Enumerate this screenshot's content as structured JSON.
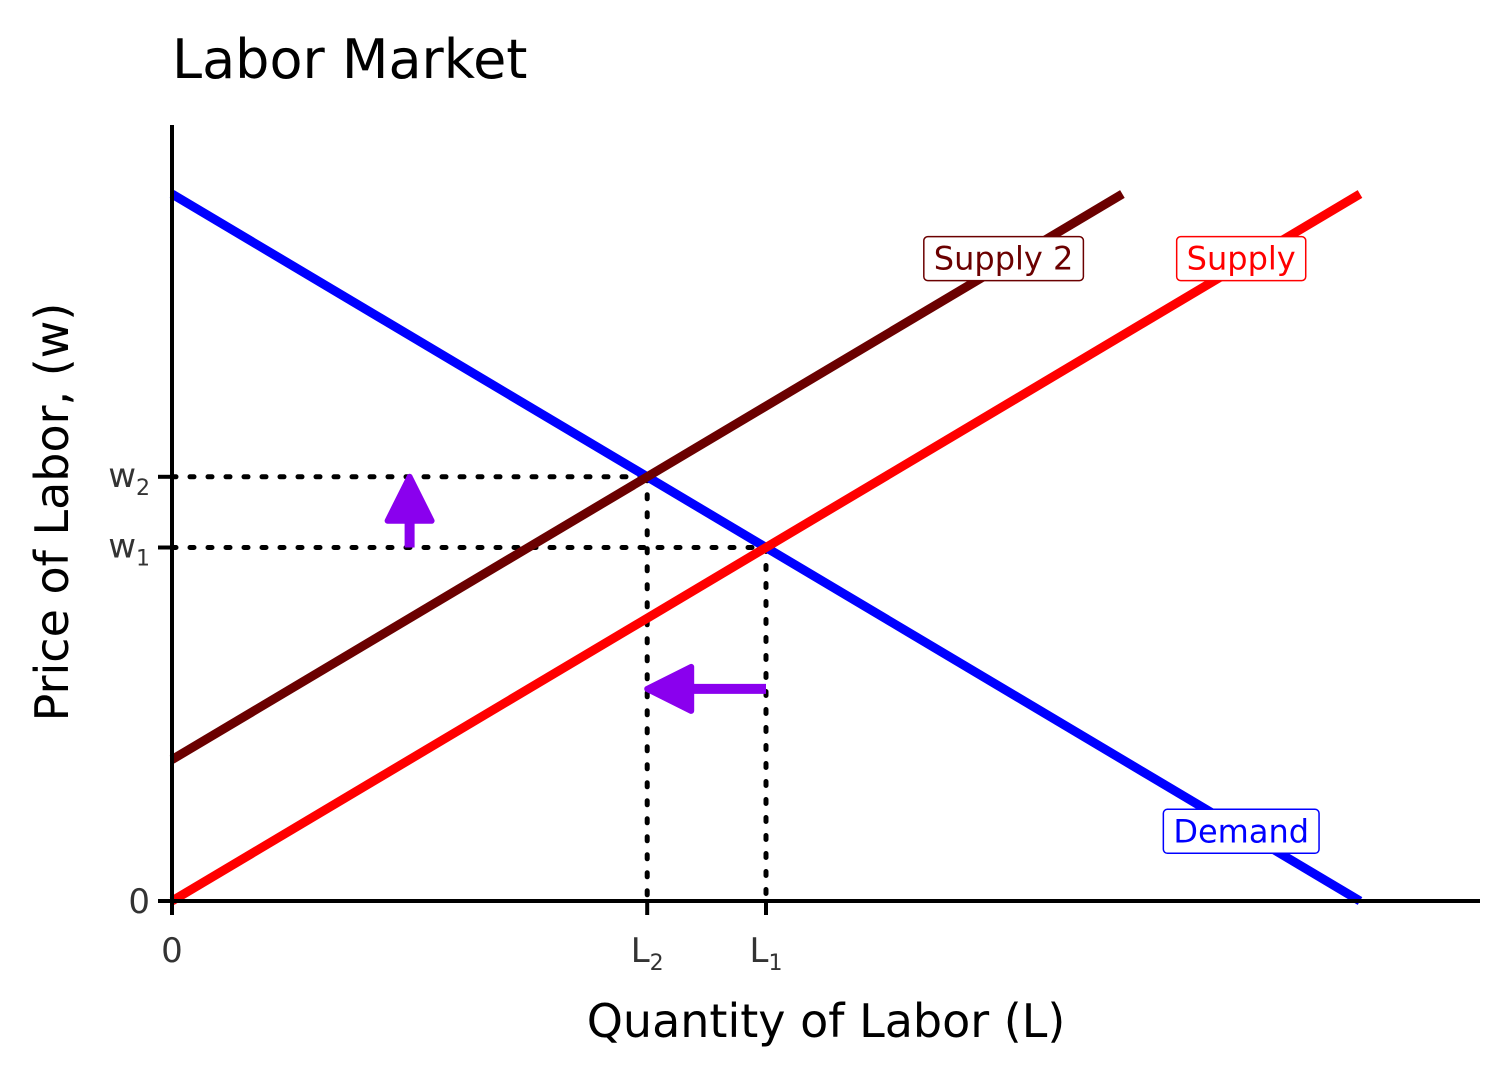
{
  "chart_data": {
    "type": "line",
    "title": "Labor Market",
    "xlabel": "Quantity of Labor (L)",
    "ylabel": "Price of Labor, (w)",
    "xlim": [
      0,
      11
    ],
    "ylim": [
      0,
      11
    ],
    "grid": false,
    "colors": {
      "demand": "#0000ff",
      "supply": "#ff0000",
      "supply2": "#6b0000",
      "arrow": "#8a00ee",
      "axis": "#000000",
      "guide": "#000000"
    },
    "series": [
      {
        "name": "Demand",
        "key": "demand",
        "x": [
          0,
          10
        ],
        "y": [
          10,
          0
        ]
      },
      {
        "name": "Supply",
        "key": "supply",
        "x": [
          0,
          10
        ],
        "y": [
          0,
          10
        ]
      },
      {
        "name": "Supply 2",
        "key": "supply2",
        "x": [
          0,
          8
        ],
        "y": [
          2,
          10
        ]
      }
    ],
    "series_labels": [
      {
        "text": "Supply 2",
        "key": "supply2",
        "x": 7.0,
        "y": 9.1
      },
      {
        "text": "Supply",
        "key": "supply",
        "x": 9.0,
        "y": 9.1
      },
      {
        "text": "Demand",
        "key": "demand",
        "x": 9.0,
        "y": 1.0
      }
    ],
    "equilibria": [
      {
        "x": 5.0,
        "y": 5.0,
        "x_label": "L",
        "x_sub": "1",
        "y_label": "w",
        "y_sub": "1"
      },
      {
        "x": 4.0,
        "y": 6.0,
        "x_label": "L",
        "x_sub": "2",
        "y_label": "w",
        "y_sub": "2"
      }
    ],
    "arrows": [
      {
        "from": [
          2.0,
          5.0
        ],
        "to": [
          2.0,
          6.0
        ],
        "meaning": "wage increase"
      },
      {
        "from": [
          5.0,
          3.0
        ],
        "to": [
          4.0,
          3.0
        ],
        "meaning": "quantity decrease"
      }
    ],
    "x_zero_label": "0",
    "y_zero_label": "0"
  }
}
